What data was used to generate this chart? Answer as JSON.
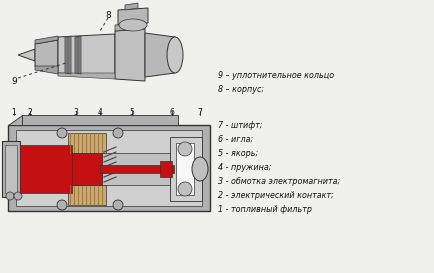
{
  "bg_color": "#f0f0ec",
  "legend_top": [
    "1 - топливный фильтр",
    "2 - электрический контакт;",
    "3 - обмотка электромагнита;",
    "4 - пружина;",
    "5 - якорь;",
    "6 - игла;",
    "7 - штифт;"
  ],
  "legend_bottom": [
    "8 – корпус;",
    "9 – уплотнительное кольцо"
  ],
  "red": "#c41010",
  "gray_outer": "#b0b0b0",
  "gray_inner": "#d0d0d0",
  "gray_mid": "#c0c0c0",
  "white": "#f8f8f8",
  "dark": "#444444",
  "line": "#333333",
  "text": "#111111",
  "coil_color": "#c8a870"
}
